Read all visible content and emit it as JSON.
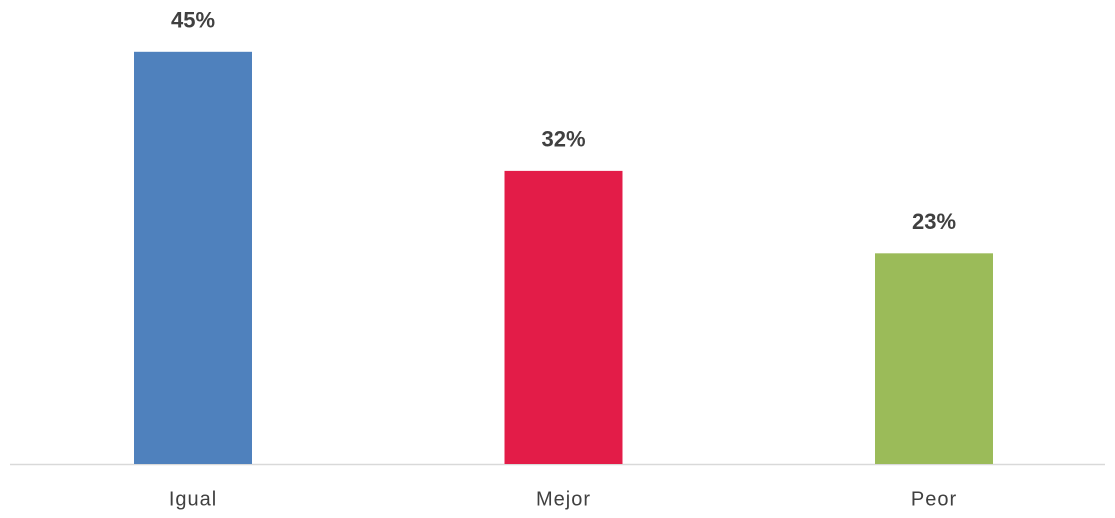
{
  "chart_data": {
    "type": "bar",
    "categories": [
      "Igual",
      "Mejor",
      "Peor"
    ],
    "values": [
      45,
      32,
      23
    ],
    "value_labels": [
      "45%",
      "32%",
      "23%"
    ],
    "colors": [
      "#4f81bd",
      "#e31c48",
      "#9bbb59"
    ],
    "ylim": [
      0,
      50
    ]
  }
}
